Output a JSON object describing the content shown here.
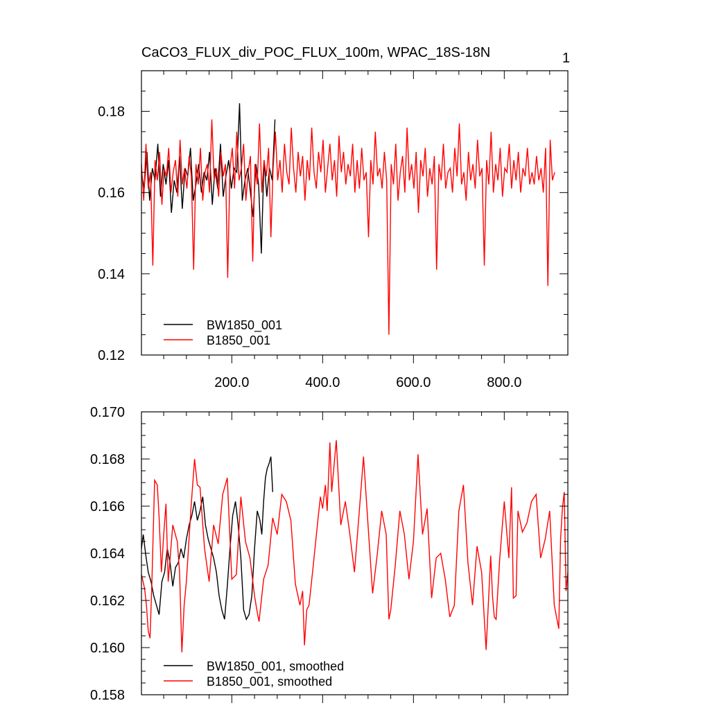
{
  "chart_data": [
    {
      "type": "line",
      "title": "CaCO3_FLUX_div_POC_FLUX_100m, WPAC_18S-18N",
      "corner_label": "1",
      "xlabel": "",
      "ylabel": "",
      "xlim": [
        1,
        940
      ],
      "ylim": [
        0.12,
        0.19
      ],
      "x_ticks": [
        200,
        400,
        600,
        800
      ],
      "x_tick_labels": [
        "200.0",
        "400.0",
        "600.0",
        "800.0"
      ],
      "y_ticks": [
        0.12,
        0.14,
        0.16,
        0.18
      ],
      "y_tick_labels": [
        "0.12",
        "0.14",
        "0.16",
        "0.18"
      ],
      "grid": false,
      "legend_position": "bottom-left",
      "series": [
        {
          "name": "BW1850_001",
          "color": "#000000",
          "x_start": 1,
          "x_step": 6,
          "values": [
            0.165,
            0.161,
            0.17,
            0.158,
            0.166,
            0.163,
            0.172,
            0.159,
            0.167,
            0.162,
            0.168,
            0.155,
            0.163,
            0.16,
            0.169,
            0.156,
            0.166,
            0.164,
            0.171,
            0.158,
            0.162,
            0.167,
            0.16,
            0.165,
            0.163,
            0.17,
            0.157,
            0.166,
            0.161,
            0.172,
            0.159,
            0.164,
            0.168,
            0.161,
            0.166,
            0.165,
            0.182,
            0.158,
            0.163,
            0.166,
            0.16,
            0.154,
            0.167,
            0.162,
            0.145,
            0.168,
            0.159,
            0.166,
            0.163,
            0.178
          ]
        },
        {
          "name": "B1850_001",
          "color": "#ff0000",
          "x_start": 1,
          "x_step": 5,
          "values": [
            0.167,
            0.158,
            0.172,
            0.161,
            0.165,
            0.142,
            0.168,
            0.163,
            0.17,
            0.157,
            0.166,
            0.164,
            0.171,
            0.16,
            0.165,
            0.168,
            0.159,
            0.173,
            0.162,
            0.166,
            0.161,
            0.169,
            0.164,
            0.141,
            0.167,
            0.162,
            0.171,
            0.158,
            0.165,
            0.167,
            0.16,
            0.178,
            0.163,
            0.166,
            0.159,
            0.17,
            0.164,
            0.167,
            0.139,
            0.166,
            0.171,
            0.161,
            0.175,
            0.163,
            0.166,
            0.172,
            0.158,
            0.165,
            0.169,
            0.143,
            0.167,
            0.162,
            0.177,
            0.16,
            0.168,
            0.164,
            0.171,
            0.149,
            0.166,
            0.175,
            0.163,
            0.168,
            0.16,
            0.172,
            0.165,
            0.162,
            0.176,
            0.166,
            0.16,
            0.17,
            0.164,
            0.169,
            0.158,
            0.168,
            0.163,
            0.176,
            0.165,
            0.161,
            0.17,
            0.165,
            0.173,
            0.16,
            0.166,
            0.172,
            0.163,
            0.168,
            0.159,
            0.174,
            0.165,
            0.17,
            0.162,
            0.167,
            0.164,
            0.172,
            0.16,
            0.168,
            0.161,
            0.171,
            0.163,
            0.165,
            0.149,
            0.168,
            0.162,
            0.175,
            0.164,
            0.166,
            0.161,
            0.17,
            0.163,
            0.125,
            0.167,
            0.162,
            0.172,
            0.158,
            0.165,
            0.169,
            0.16,
            0.176,
            0.163,
            0.167,
            0.161,
            0.17,
            0.155,
            0.168,
            0.164,
            0.171,
            0.159,
            0.166,
            0.162,
            0.169,
            0.141,
            0.167,
            0.163,
            0.172,
            0.161,
            0.165,
            0.166,
            0.16,
            0.171,
            0.164,
            0.177,
            0.162,
            0.165,
            0.158,
            0.17,
            0.163,
            0.167,
            0.161,
            0.173,
            0.164,
            0.166,
            0.142,
            0.168,
            0.162,
            0.175,
            0.16,
            0.167,
            0.163,
            0.171,
            0.159,
            0.166,
            0.165,
            0.172,
            0.161,
            0.168,
            0.163,
            0.17,
            0.16,
            0.166,
            0.164,
            0.171,
            0.162,
            0.165,
            0.162,
            0.169,
            0.163,
            0.166,
            0.16,
            0.171,
            0.137,
            0.173,
            0.163,
            0.165
          ]
        }
      ]
    },
    {
      "type": "line",
      "title": "",
      "xlabel": "",
      "ylabel": "",
      "xlim": [
        1,
        940
      ],
      "ylim": [
        0.158,
        0.17
      ],
      "x_ticks": [
        200,
        400,
        600,
        800
      ],
      "x_tick_labels": [
        "",
        "",
        "",
        ""
      ],
      "y_ticks": [
        0.158,
        0.16,
        0.162,
        0.164,
        0.166,
        0.168,
        0.17
      ],
      "y_tick_labels": [
        "0.158",
        "0.160",
        "0.162",
        "0.164",
        "0.166",
        "0.168",
        "0.170"
      ],
      "grid": false,
      "legend_position": "bottom-left",
      "series": [
        {
          "name": "BW1850_001, smoothed",
          "color": "#000000",
          "x": [
            1,
            5,
            10,
            16,
            22,
            28,
            34,
            40,
            46,
            52,
            58,
            64,
            70,
            76,
            82,
            88,
            94,
            100,
            106,
            112,
            118,
            124,
            130,
            136,
            142,
            148,
            154,
            160,
            166,
            172,
            178,
            184,
            190,
            196,
            202,
            208,
            214,
            220,
            226,
            232,
            238,
            244,
            250,
            256,
            262,
            266,
            270,
            274,
            278,
            282,
            286,
            290
          ],
          "values": [
            0.1642,
            0.1648,
            0.164,
            0.1632,
            0.1628,
            0.1622,
            0.1618,
            0.1614,
            0.1628,
            0.1632,
            0.1642,
            0.1636,
            0.1626,
            0.1634,
            0.1636,
            0.1642,
            0.1638,
            0.1646,
            0.1652,
            0.1656,
            0.1662,
            0.1654,
            0.1658,
            0.1664,
            0.1652,
            0.1646,
            0.1642,
            0.1638,
            0.1632,
            0.1622,
            0.1616,
            0.1612,
            0.1626,
            0.1642,
            0.1656,
            0.1662,
            0.1652,
            0.1638,
            0.1616,
            0.1612,
            0.1614,
            0.1622,
            0.1642,
            0.1658,
            0.1654,
            0.1648,
            0.1662,
            0.1672,
            0.1676,
            0.1678,
            0.1681,
            0.1666
          ]
        },
        {
          "name": "B1850_001, smoothed",
          "color": "#ff0000",
          "x": [
            1,
            8,
            12,
            16,
            20,
            24,
            30,
            36,
            40,
            45,
            50,
            55,
            60,
            70,
            80,
            85,
            90,
            95,
            100,
            110,
            118,
            124,
            130,
            140,
            150,
            160,
            170,
            180,
            190,
            200,
            210,
            220,
            230,
            240,
            250,
            255,
            260,
            270,
            280,
            290,
            300,
            310,
            320,
            330,
            340,
            350,
            356,
            360,
            365,
            370,
            380,
            390,
            395,
            400,
            406,
            410,
            416,
            420,
            430,
            440,
            450,
            460,
            470,
            480,
            490,
            500,
            510,
            520,
            530,
            540,
            546,
            550,
            560,
            570,
            580,
            590,
            600,
            610,
            620,
            630,
            640,
            650,
            660,
            670,
            680,
            690,
            700,
            710,
            720,
            730,
            740,
            750,
            760,
            770,
            774,
            778,
            782,
            790,
            800,
            810,
            816,
            820,
            826,
            830,
            840,
            850,
            860,
            870,
            880,
            890,
            900,
            910,
            920,
            924,
            928,
            932,
            936,
            940
          ],
          "values": [
            0.1631,
            0.1625,
            0.1618,
            0.1607,
            0.1604,
            0.1628,
            0.1671,
            0.1669,
            0.1655,
            0.1632,
            0.1648,
            0.1661,
            0.1628,
            0.1652,
            0.1645,
            0.1632,
            0.1598,
            0.1618,
            0.1628,
            0.1659,
            0.168,
            0.1669,
            0.1668,
            0.1642,
            0.1628,
            0.1652,
            0.1644,
            0.1665,
            0.1672,
            0.1629,
            0.1631,
            0.1664,
            0.1645,
            0.1638,
            0.1622,
            0.1616,
            0.1611,
            0.1629,
            0.1635,
            0.1655,
            0.1648,
            0.1665,
            0.1662,
            0.1654,
            0.1627,
            0.1618,
            0.1624,
            0.1601,
            0.1616,
            0.1618,
            0.1636,
            0.1655,
            0.1664,
            0.1659,
            0.1669,
            0.1658,
            0.1687,
            0.1666,
            0.1688,
            0.1652,
            0.1662,
            0.1648,
            0.1632,
            0.1656,
            0.1681,
            0.1652,
            0.1623,
            0.1639,
            0.1658,
            0.1648,
            0.1612,
            0.1616,
            0.1635,
            0.1658,
            0.1648,
            0.1629,
            0.1645,
            0.1682,
            0.1648,
            0.1659,
            0.1621,
            0.1638,
            0.164,
            0.1629,
            0.1613,
            0.1618,
            0.1658,
            0.1669,
            0.1636,
            0.1618,
            0.1643,
            0.1632,
            0.1599,
            0.1639,
            0.1622,
            0.1613,
            0.1612,
            0.1638,
            0.1662,
            0.1638,
            0.1668,
            0.1621,
            0.1622,
            0.1658,
            0.1649,
            0.1653,
            0.1662,
            0.1665,
            0.1638,
            0.1646,
            0.1658,
            0.1618,
            0.1608,
            0.1646,
            0.1659,
            0.1666,
            0.1624,
            0.1632
          ]
        }
      ]
    }
  ]
}
